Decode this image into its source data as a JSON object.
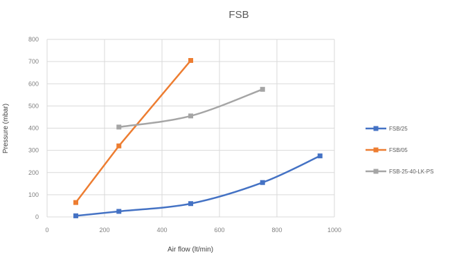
{
  "chart_data": {
    "type": "scatter",
    "title": "FSB",
    "xlabel": "Air flow (lt/min)",
    "ylabel": "Pressure (mbar)",
    "xlim": [
      0,
      1000
    ],
    "ylim": [
      0,
      800
    ],
    "x_ticks": [
      "0",
      "200",
      "400",
      "600",
      "800",
      "1000"
    ],
    "y_ticks": [
      "0",
      "100",
      "200",
      "300",
      "400",
      "500",
      "600",
      "700",
      "800"
    ],
    "grid": true,
    "legend_position": "right",
    "series": [
      {
        "name": "FSB/25",
        "color": "#4472c4",
        "smooth": true,
        "points": [
          [
            100,
            5
          ],
          [
            250,
            25
          ],
          [
            500,
            60
          ],
          [
            750,
            155
          ],
          [
            950,
            275
          ]
        ]
      },
      {
        "name": "FSB/05",
        "color": "#ed7d31",
        "smooth": false,
        "points": [
          [
            100,
            65
          ],
          [
            250,
            320
          ],
          [
            500,
            705
          ]
        ]
      },
      {
        "name": "FSB-25-40-LK-PS",
        "color": "#a5a5a5",
        "smooth": true,
        "points": [
          [
            250,
            405
          ],
          [
            500,
            455
          ],
          [
            750,
            575
          ]
        ]
      }
    ]
  }
}
